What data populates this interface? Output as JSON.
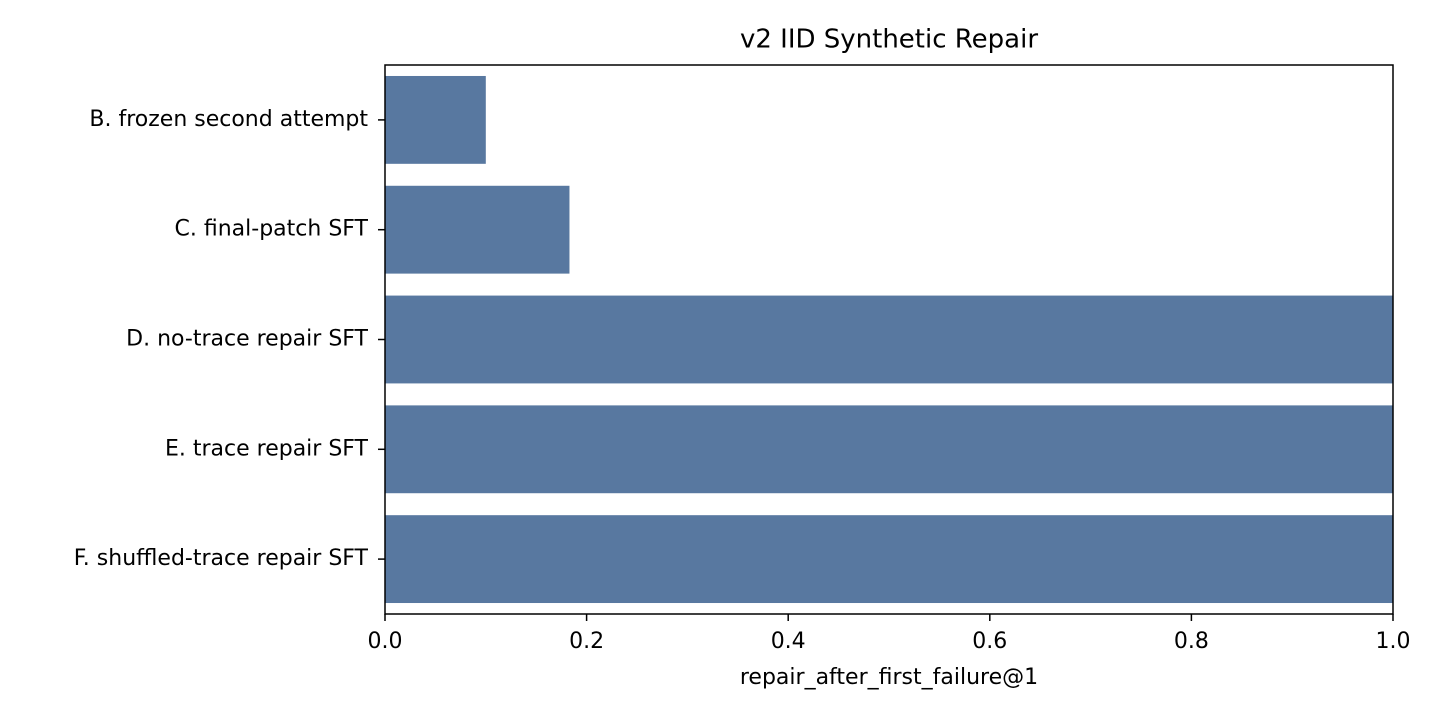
{
  "chart_data": {
    "type": "barh",
    "title": "v2 IID Synthetic Repair",
    "x_label": "repair_after_first_failure@1",
    "categories": [
      "B. frozen second attempt",
      "C. final-patch SFT",
      "D. no-trace repair SFT",
      "E. trace repair SFT",
      "F. shuffled-trace repair SFT"
    ],
    "values": [
      0.1,
      0.183,
      1.0,
      1.0,
      1.0
    ],
    "color": "#5878a0",
    "xlim": [
      0,
      1
    ],
    "xticks": [
      {
        "value": 0,
        "label": "0.0"
      },
      0.2,
      0.4,
      0.6,
      0.8,
      {
        "value": 1,
        "label": "1.0"
      }
    ],
    "grid": false
  }
}
